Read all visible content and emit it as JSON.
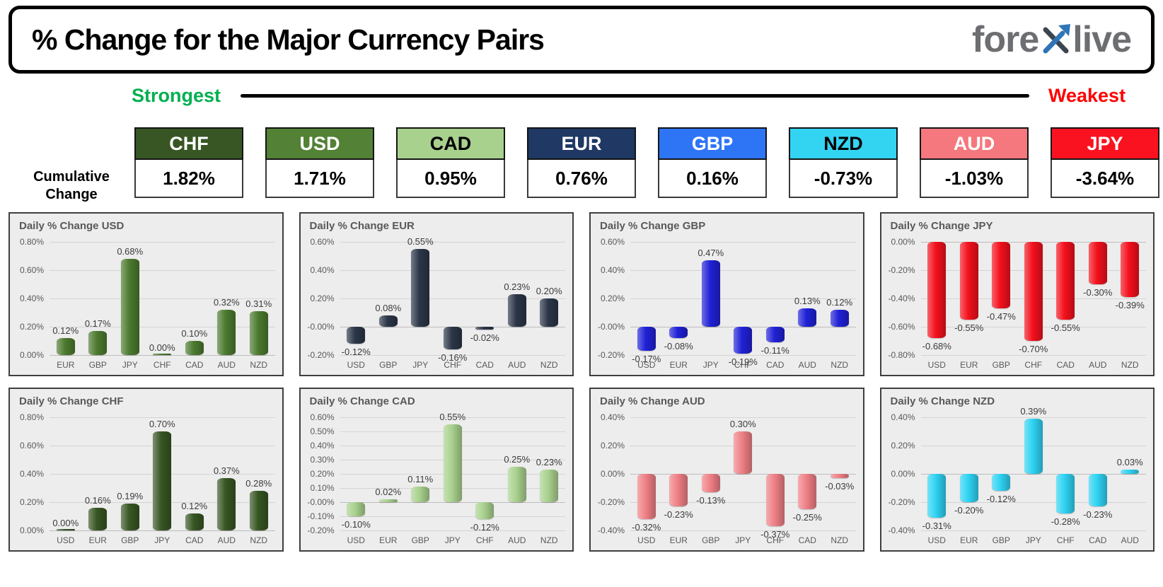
{
  "header": {
    "title": "% Change for the Major Currency Pairs",
    "logo_prefix": "fore",
    "logo_suffix": "live"
  },
  "scale": {
    "strongest": "Strongest",
    "weakest": "Weakest",
    "strongest_color": "#00b050",
    "weakest_color": "#ff0000"
  },
  "cumulative_label": "Cumulative Change",
  "ranking": [
    {
      "code": "CHF",
      "value": "1.82%",
      "header_bg": "#375623",
      "header_fg": "#ffffff"
    },
    {
      "code": "USD",
      "value": "1.71%",
      "header_bg": "#538135",
      "header_fg": "#ffffff"
    },
    {
      "code": "CAD",
      "value": "0.95%",
      "header_bg": "#a9d18e",
      "header_fg": "#000000"
    },
    {
      "code": "EUR",
      "value": "0.76%",
      "header_bg": "#1f3864",
      "header_fg": "#ffffff"
    },
    {
      "code": "GBP",
      "value": "0.16%",
      "header_bg": "#2e75f6",
      "header_fg": "#ffffff"
    },
    {
      "code": "NZD",
      "value": "-0.73%",
      "header_bg": "#33d4f2",
      "header_fg": "#000000"
    },
    {
      "code": "AUD",
      "value": "-1.03%",
      "header_bg": "#f4787e",
      "header_fg": "#ffffff"
    },
    {
      "code": "JPY",
      "value": "-3.64%",
      "header_bg": "#fb1220",
      "header_fg": "#ffffff"
    }
  ],
  "chart_data": [
    {
      "type": "bar",
      "title": "Daily % Change USD",
      "categories": [
        "EUR",
        "GBP",
        "JPY",
        "CHF",
        "CAD",
        "AUD",
        "NZD"
      ],
      "values": [
        0.12,
        0.17,
        0.68,
        0.0,
        0.1,
        0.32,
        0.31
      ],
      "labels": [
        "0.12%",
        "0.17%",
        "0.68%",
        "0.00%",
        "0.10%",
        "0.32%",
        "0.31%"
      ],
      "ylim": [
        0,
        0.8
      ],
      "ytick_step": 0.2,
      "bar_color": "#4c7a2f"
    },
    {
      "type": "bar",
      "title": "Daily % Change EUR",
      "categories": [
        "USD",
        "GBP",
        "JPY",
        "CHF",
        "CAD",
        "AUD",
        "NZD"
      ],
      "values": [
        -0.12,
        0.08,
        0.55,
        -0.16,
        -0.02,
        0.23,
        0.2
      ],
      "labels": [
        "-0.12%",
        "0.08%",
        "0.55%",
        "-0.16%",
        "-0.02%",
        "0.23%",
        "0.20%"
      ],
      "ylim": [
        -0.2,
        0.6
      ],
      "ytick_step": 0.2,
      "bar_color": "#2b3648"
    },
    {
      "type": "bar",
      "title": "Daily % Change GBP",
      "categories": [
        "USD",
        "EUR",
        "JPY",
        "CHF",
        "CAD",
        "AUD",
        "NZD"
      ],
      "values": [
        -0.17,
        -0.08,
        0.47,
        -0.19,
        -0.11,
        0.13,
        0.12
      ],
      "labels": [
        "-0.17%",
        "-0.08%",
        "0.47%",
        "-0.19%",
        "-0.11%",
        "0.13%",
        "0.12%"
      ],
      "ylim": [
        -0.2,
        0.6
      ],
      "ytick_step": 0.2,
      "bar_color": "#2021d6"
    },
    {
      "type": "bar",
      "title": "Daily % Change JPY",
      "categories": [
        "USD",
        "EUR",
        "GBP",
        "CHF",
        "CAD",
        "AUD",
        "NZD"
      ],
      "values": [
        -0.68,
        -0.55,
        -0.47,
        -0.7,
        -0.55,
        -0.3,
        -0.39
      ],
      "labels": [
        "-0.68%",
        "-0.55%",
        "-0.47%",
        "-0.70%",
        "-0.55%",
        "-0.30%",
        "-0.39%"
      ],
      "ylim": [
        -0.8,
        0
      ],
      "ytick_step": 0.2,
      "bar_color": "#f3101c"
    },
    {
      "type": "bar",
      "title": "Daily % Change CHF",
      "categories": [
        "USD",
        "EUR",
        "GBP",
        "JPY",
        "CAD",
        "AUD",
        "NZD"
      ],
      "values": [
        0.0,
        0.16,
        0.19,
        0.7,
        0.12,
        0.37,
        0.28
      ],
      "labels": [
        "0.00%",
        "0.16%",
        "0.19%",
        "0.70%",
        "0.12%",
        "0.37%",
        "0.28%"
      ],
      "ylim": [
        0,
        0.8
      ],
      "ytick_step": 0.2,
      "bar_color": "#375623"
    },
    {
      "type": "bar",
      "title": "Daily % Change CAD",
      "categories": [
        "USD",
        "EUR",
        "GBP",
        "JPY",
        "CHF",
        "AUD",
        "NZD"
      ],
      "values": [
        -0.1,
        0.02,
        0.11,
        0.55,
        -0.12,
        0.25,
        0.23
      ],
      "labels": [
        "-0.10%",
        "0.02%",
        "0.11%",
        "0.55%",
        "-0.12%",
        "0.25%",
        "0.23%"
      ],
      "ylim": [
        -0.2,
        0.6
      ],
      "ytick_step": 0.1,
      "bar_color": "#a9d18e"
    },
    {
      "type": "bar",
      "title": "Daily % Change AUD",
      "categories": [
        "USD",
        "EUR",
        "GBP",
        "JPY",
        "CHF",
        "CAD",
        "NZD"
      ],
      "values": [
        -0.32,
        -0.23,
        -0.13,
        0.3,
        -0.37,
        -0.25,
        -0.03
      ],
      "labels": [
        "-0.32%",
        "-0.23%",
        "-0.13%",
        "0.30%",
        "-0.37%",
        "-0.25%",
        "-0.03%"
      ],
      "ylim": [
        -0.4,
        0.4
      ],
      "ytick_step": 0.2,
      "bar_color": "#ef8086"
    },
    {
      "type": "bar",
      "title": "Daily % Change NZD",
      "categories": [
        "USD",
        "EUR",
        "GBP",
        "JPY",
        "CHF",
        "CAD",
        "AUD"
      ],
      "values": [
        -0.31,
        -0.2,
        -0.12,
        0.39,
        -0.28,
        -0.23,
        0.03
      ],
      "labels": [
        "-0.31%",
        "-0.20%",
        "-0.12%",
        "0.39%",
        "-0.28%",
        "-0.23%",
        "0.03%"
      ],
      "ylim": [
        -0.4,
        0.4
      ],
      "ytick_step": 0.2,
      "bar_color": "#2fd3f3"
    }
  ]
}
